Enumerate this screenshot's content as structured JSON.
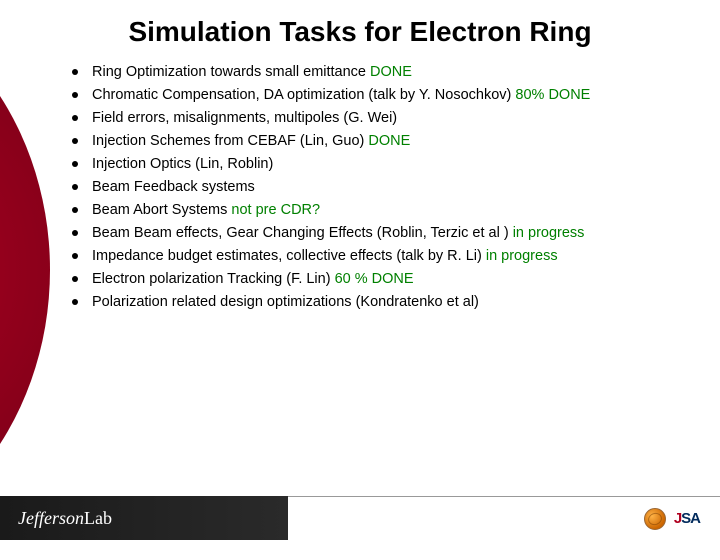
{
  "title": "Simulation Tasks for Electron Ring",
  "items": [
    {
      "text": "Ring Optimization towards small emittance",
      "status": "DONE",
      "status_class": "status-done"
    },
    {
      "text": "Chromatic Compensation, DA optimization (talk by Y. Nosochkov)",
      "status": "80% DONE",
      "status_class": "status-pct"
    },
    {
      "text": "Field errors, misalignments, multipoles (G. Wei)",
      "status": "",
      "status_class": ""
    },
    {
      "text": "Injection Schemes from CEBAF (Lin, Guo)",
      "status": "DONE",
      "status_class": "status-done"
    },
    {
      "text": "Injection Optics (Lin, Roblin)",
      "status": "",
      "status_class": ""
    },
    {
      "text": "Beam Feedback systems",
      "status": "",
      "status_class": ""
    },
    {
      "text": "Beam Abort Systems",
      "status": "not pre CDR?",
      "status_class": "status-question"
    },
    {
      "text": "Beam Beam effects, Gear Changing Effects (Roblin, Terzic et al )",
      "status": "in progress",
      "status_class": "status-progress"
    },
    {
      "text": "Impedance budget estimates, collective effects (talk by R. Li)",
      "status": "in progress",
      "status_class": "status-progress"
    },
    {
      "text": "Electron polarization Tracking (F. Lin)",
      "status": "60 % DONE",
      "status_class": "status-pct"
    },
    {
      "text": "Polarization related design optimizations (Kondratenko et al)",
      "status": "",
      "status_class": ""
    }
  ],
  "footer": {
    "brand_italic": "Jefferson",
    "brand_plain": " Lab",
    "jsa": {
      "j": "J",
      "sa": "SA"
    }
  },
  "colors": {
    "status_green": "#008000",
    "arc_red": "#7a0018",
    "footer_dark": "#1a1a1a",
    "jsa_blue": "#002a5c",
    "jsa_red": "#b00020"
  }
}
